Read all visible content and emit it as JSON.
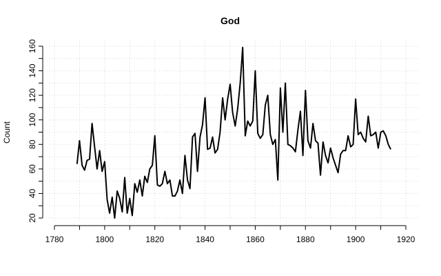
{
  "chart_data": {
    "type": "line",
    "title": "God",
    "xlabel": "",
    "ylabel": "Count",
    "xlim": [
      1780,
      1920
    ],
    "ylim": [
      20,
      160
    ],
    "x_ticks": [
      1780,
      1800,
      1820,
      1840,
      1860,
      1880,
      1900,
      1920
    ],
    "y_ticks": [
      20,
      40,
      60,
      80,
      100,
      120,
      140,
      160
    ],
    "grid": true,
    "series": [
      {
        "color": "#000000",
        "x": [
          1789,
          1790,
          1791,
          1792,
          1793,
          1794,
          1795,
          1796,
          1797,
          1798,
          1799,
          1800,
          1801,
          1802,
          1803,
          1804,
          1805,
          1806,
          1807,
          1808,
          1809,
          1810,
          1811,
          1812,
          1813,
          1814,
          1815,
          1816,
          1817,
          1818,
          1819,
          1820,
          1821,
          1822,
          1823,
          1824,
          1825,
          1826,
          1827,
          1828,
          1829,
          1830,
          1831,
          1832,
          1833,
          1834,
          1835,
          1836,
          1837,
          1838,
          1839,
          1840,
          1841,
          1842,
          1843,
          1844,
          1845,
          1846,
          1847,
          1848,
          1849,
          1850,
          1851,
          1852,
          1853,
          1854,
          1855,
          1856,
          1857,
          1858,
          1859,
          1860,
          1861,
          1862,
          1863,
          1864,
          1865,
          1866,
          1867,
          1868,
          1869,
          1870,
          1871,
          1872,
          1873,
          1874,
          1875,
          1876,
          1877,
          1878,
          1879,
          1880,
          1881,
          1882,
          1883,
          1884,
          1885,
          1886,
          1887,
          1888,
          1889,
          1890,
          1891,
          1892,
          1893,
          1894,
          1895,
          1896,
          1897,
          1898,
          1899,
          1900,
          1901,
          1902,
          1903,
          1904,
          1905,
          1906,
          1907,
          1908,
          1909,
          1910,
          1911,
          1912,
          1913,
          1914
        ],
        "y": [
          64,
          83,
          63,
          59,
          67,
          68,
          97,
          78,
          60,
          75,
          58,
          66,
          35,
          24,
          37,
          20,
          42,
          36,
          25,
          53,
          24,
          36,
          22,
          48,
          41,
          51,
          38,
          54,
          49,
          60,
          63,
          87,
          47,
          46,
          48,
          58,
          48,
          51,
          38,
          38,
          42,
          51,
          40,
          71,
          51,
          44,
          86,
          89,
          58,
          86,
          96,
          118,
          76,
          77,
          86,
          73,
          76,
          90,
          118,
          100,
          117,
          129,
          106,
          95,
          109,
          130,
          159,
          87,
          99,
          95,
          99,
          140,
          89,
          85,
          88,
          112,
          120,
          88,
          80,
          84,
          51,
          126,
          90,
          130,
          80,
          79,
          77,
          74,
          92,
          107,
          71,
          124,
          83,
          77,
          97,
          83,
          81,
          55,
          82,
          71,
          65,
          77,
          69,
          63,
          57,
          72,
          75,
          75,
          87,
          78,
          80,
          117,
          88,
          90,
          85,
          82,
          103,
          87,
          88,
          90,
          77,
          90,
          91,
          87,
          80,
          76
        ]
      }
    ]
  }
}
